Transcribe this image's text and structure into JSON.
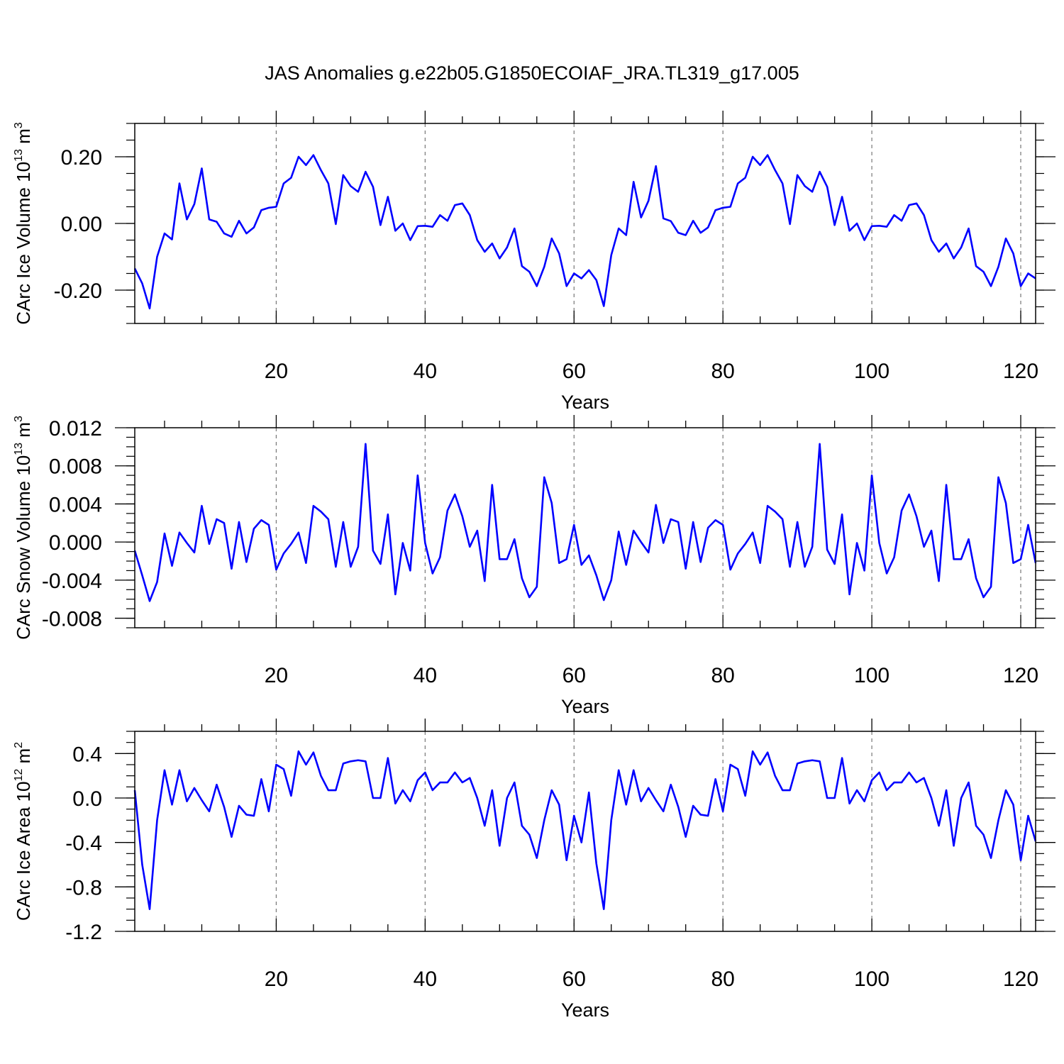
{
  "title": "JAS Anomalies g.e22b05.G1850ECOIAF_JRA.TL319_g17.005",
  "chart_data": [
    {
      "type": "line",
      "ylabel": "CArc Ice Volume 10",
      "ylabel_exp": "13",
      "ylabel_unit": " m",
      "ylabel_unit_exp": "3",
      "xlabel": "Years",
      "xlim": [
        1,
        122
      ],
      "ylim": [
        -0.3,
        0.3
      ],
      "x_ticks": [
        20,
        40,
        60,
        80,
        100,
        120
      ],
      "x_tick_labels": [
        "20",
        "40",
        "60",
        "80",
        "100",
        "120"
      ],
      "y_ticks": [
        -0.2,
        0.0,
        0.2
      ],
      "y_tick_labels": [
        "-0.20",
        "0.00",
        "0.20"
      ],
      "y_minor_step": 0.05,
      "line_color": "#0000ff",
      "values": [
        -0.135,
        -0.18,
        -0.255,
        -0.1,
        -0.03,
        -0.048,
        0.12,
        0.012,
        0.058,
        0.165,
        0.012,
        0.005,
        -0.03,
        -0.04,
        0.008,
        -0.03,
        -0.012,
        0.04,
        0.047,
        0.05,
        0.12,
        0.137,
        0.2,
        0.175,
        0.205,
        0.16,
        0.12,
        -0.002,
        0.145,
        0.112,
        0.095,
        0.155,
        0.11,
        -0.005,
        0.08,
        -0.022,
        0.0,
        -0.05,
        -0.008,
        -0.007,
        -0.01,
        0.025,
        0.008,
        0.055,
        0.06,
        0.025,
        -0.05,
        -0.085,
        -0.06,
        -0.105,
        -0.072,
        -0.015,
        -0.128,
        -0.145,
        -0.188,
        -0.13,
        -0.045,
        -0.09,
        -0.188,
        -0.15,
        -0.165,
        -0.14,
        -0.17,
        -0.248,
        -0.095,
        -0.015,
        -0.035,
        0.125,
        0.018,
        0.068,
        0.172,
        0.015,
        0.007,
        -0.028,
        -0.035,
        0.008,
        -0.028,
        -0.012,
        0.04,
        0.047,
        0.05,
        0.12,
        0.137,
        0.2,
        0.175,
        0.205,
        0.16,
        0.12,
        -0.002,
        0.145,
        0.112,
        0.095,
        0.155,
        0.11,
        -0.005,
        0.08,
        -0.022,
        0.0,
        -0.05,
        -0.008,
        -0.007,
        -0.01,
        0.025,
        0.008,
        0.055,
        0.06,
        0.025,
        -0.05,
        -0.085,
        -0.06,
        -0.105,
        -0.072,
        -0.015,
        -0.128,
        -0.145,
        -0.188,
        -0.13,
        -0.045,
        -0.09,
        -0.188,
        -0.15,
        -0.165
      ]
    },
    {
      "type": "line",
      "ylabel": "CArc Snow Volume 10",
      "ylabel_exp": "13",
      "ylabel_unit": " m",
      "ylabel_unit_exp": "3",
      "xlabel": "Years",
      "xlim": [
        1,
        122
      ],
      "ylim": [
        -0.009,
        0.012
      ],
      "x_ticks": [
        20,
        40,
        60,
        80,
        100,
        120
      ],
      "x_tick_labels": [
        "20",
        "40",
        "60",
        "80",
        "100",
        "120"
      ],
      "y_ticks": [
        -0.008,
        -0.004,
        0.0,
        0.004,
        0.008,
        0.012
      ],
      "y_tick_labels": [
        "-0.008",
        "-0.004",
        "0.000",
        "0.004",
        "0.008",
        "0.012"
      ],
      "y_minor_step": 0.001,
      "line_color": "#0000ff",
      "values": [
        -0.0009,
        -0.0035,
        -0.0062,
        -0.0042,
        0.0009,
        -0.0025,
        0.001,
        -0.0001,
        -0.0011,
        0.0038,
        -0.0002,
        0.0024,
        0.002,
        -0.0028,
        0.0021,
        -0.0021,
        0.0014,
        0.0023,
        0.0018,
        -0.0029,
        -0.0012,
        -0.0002,
        0.001,
        -0.0022,
        0.0038,
        0.0032,
        0.0024,
        -0.0026,
        0.0021,
        -0.0026,
        -0.0005,
        0.0103,
        -0.0009,
        -0.0023,
        0.0029,
        -0.0055,
        -0.0001,
        -0.003,
        0.007,
        -0.0001,
        -0.0033,
        -0.0016,
        0.0033,
        0.005,
        0.0027,
        -0.0005,
        0.0012,
        -0.0041,
        0.006,
        -0.0018,
        -0.0018,
        0.0003,
        -0.0038,
        -0.0058,
        -0.0047,
        0.0068,
        0.0041,
        -0.0022,
        -0.0018,
        0.0018,
        -0.0024,
        -0.0014,
        -0.0035,
        -0.0061,
        -0.004,
        0.0011,
        -0.0024,
        0.0012,
        0.0,
        -0.0011,
        0.0039,
        -0.0001,
        0.0024,
        0.0021,
        -0.0028,
        0.0021,
        -0.0021,
        0.0015,
        0.0023,
        0.0018,
        -0.0029,
        -0.0012,
        -0.0002,
        0.001,
        -0.0022,
        0.0038,
        0.0032,
        0.0024,
        -0.0026,
        0.0021,
        -0.0026,
        -0.0005,
        0.0103,
        -0.0008,
        -0.0023,
        0.0029,
        -0.0055,
        -0.0001,
        -0.003,
        0.007,
        -0.0001,
        -0.0033,
        -0.0016,
        0.0033,
        0.005,
        0.0027,
        -0.0005,
        0.0012,
        -0.0041,
        0.006,
        -0.0018,
        -0.0018,
        0.0003,
        -0.0038,
        -0.0058,
        -0.0047,
        0.0068,
        0.0041,
        -0.0022,
        -0.0018,
        0.0018,
        -0.0022
      ]
    },
    {
      "type": "line",
      "ylabel": "CArc Ice Area 10",
      "ylabel_exp": "12",
      "ylabel_unit": " m",
      "ylabel_unit_exp": "2",
      "xlabel": "Years",
      "xlim": [
        1,
        122
      ],
      "ylim": [
        -1.2,
        0.6
      ],
      "x_ticks": [
        20,
        40,
        60,
        80,
        100,
        120
      ],
      "x_tick_labels": [
        "20",
        "40",
        "60",
        "80",
        "100",
        "120"
      ],
      "y_ticks": [
        -1.2,
        -0.8,
        -0.4,
        0.0,
        0.4
      ],
      "y_tick_labels": [
        "-1.2",
        "-0.8",
        "-0.4",
        "0.0",
        "0.4"
      ],
      "y_minor_step": 0.1,
      "line_color": "#0000ff",
      "values": [
        0.07,
        -0.6,
        -1.0,
        -0.2,
        0.25,
        -0.06,
        0.25,
        -0.03,
        0.09,
        -0.02,
        -0.12,
        0.12,
        -0.08,
        -0.35,
        -0.07,
        -0.15,
        -0.16,
        0.17,
        -0.12,
        0.3,
        0.26,
        0.02,
        0.42,
        0.3,
        0.41,
        0.2,
        0.07,
        0.07,
        0.31,
        0.33,
        0.34,
        0.33,
        0.0,
        0.0,
        0.36,
        -0.05,
        0.07,
        -0.03,
        0.16,
        0.23,
        0.07,
        0.14,
        0.14,
        0.23,
        0.14,
        0.18,
        0.0,
        -0.25,
        0.07,
        -0.43,
        0.0,
        0.14,
        -0.25,
        -0.33,
        -0.54,
        -0.2,
        0.07,
        -0.06,
        -0.56,
        -0.16,
        -0.4,
        0.05,
        -0.59,
        -1.0,
        -0.2,
        0.25,
        -0.06,
        0.25,
        -0.03,
        0.09,
        -0.02,
        -0.12,
        0.12,
        -0.08,
        -0.35,
        -0.07,
        -0.15,
        -0.16,
        0.17,
        -0.12,
        0.3,
        0.26,
        0.02,
        0.42,
        0.3,
        0.41,
        0.2,
        0.07,
        0.07,
        0.31,
        0.33,
        0.34,
        0.33,
        0.0,
        0.0,
        0.36,
        -0.05,
        0.07,
        -0.03,
        0.16,
        0.23,
        0.07,
        0.14,
        0.14,
        0.23,
        0.14,
        0.18,
        0.0,
        -0.25,
        0.07,
        -0.43,
        0.0,
        0.14,
        -0.25,
        -0.33,
        -0.54,
        -0.2,
        0.07,
        -0.06,
        -0.56,
        -0.16,
        -0.39
      ]
    }
  ]
}
